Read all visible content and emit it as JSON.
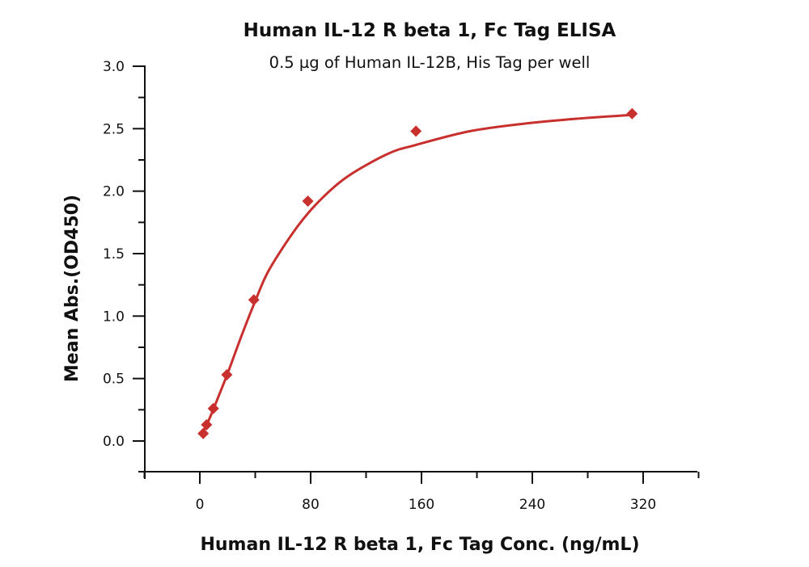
{
  "chart_data": {
    "type": "scatter",
    "title": "Human IL-12 R beta 1, Fc Tag ELISA",
    "subtitle": "0.5 µg of Human IL-12B, His Tag per well",
    "xlabel": "Human IL-12 R beta 1, Fc Tag Conc. (ng/mL)",
    "ylabel": "Mean Abs.(OD450)",
    "xlim": [
      -40,
      360
    ],
    "ylim": [
      -0.25,
      3.0
    ],
    "x_ticks": [
      0,
      80,
      160,
      240,
      320
    ],
    "x_tick_labels": [
      "0",
      "80",
      "160",
      "240",
      "320"
    ],
    "y_ticks": [
      0.0,
      0.5,
      1.0,
      1.5,
      2.0,
      2.5,
      3.0
    ],
    "y_tick_labels": [
      "0.0",
      "0.5",
      "1.0",
      "1.5",
      "2.0",
      "2.5",
      "3.0"
    ],
    "grid": false,
    "legend": null,
    "series": [
      {
        "name": "Human IL-12 R beta 1, Fc Tag",
        "marker": "diamond",
        "color": "#c8302e",
        "x": [
          2.44,
          4.88,
          9.75,
          19.5,
          39,
          78,
          156,
          312
        ],
        "y": [
          0.06,
          0.13,
          0.26,
          0.53,
          1.13,
          1.92,
          2.48,
          2.62
        ]
      }
    ],
    "fit_curve": {
      "type": "4PL sigmoid fit",
      "color": "#c8302e",
      "approx_points": [
        [
          2,
          0.07
        ],
        [
          5,
          0.13
        ],
        [
          10,
          0.26
        ],
        [
          20,
          0.54
        ],
        [
          30,
          0.84
        ],
        [
          40,
          1.12
        ],
        [
          50,
          1.37
        ],
        [
          70,
          1.71
        ],
        [
          87,
          1.93
        ],
        [
          107,
          2.12
        ],
        [
          136,
          2.3
        ],
        [
          156,
          2.37
        ],
        [
          195,
          2.48
        ],
        [
          234,
          2.54
        ],
        [
          272,
          2.58
        ],
        [
          312,
          2.61
        ]
      ]
    }
  }
}
